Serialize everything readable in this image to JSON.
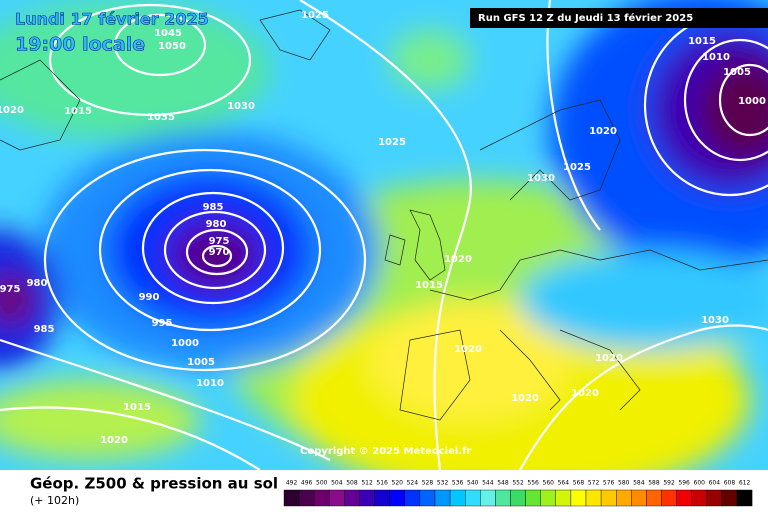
{
  "header": {
    "date": "Lundi 17 février 2025",
    "time": "19:00 locale",
    "run": "Run GFS 12 Z du Jeudi 13 février 2025"
  },
  "footer": {
    "title": "Géop. Z500 & pression au sol",
    "subtitle": "(+ 102h)",
    "copyright": "Copyright © 2025 Meteociel.fr"
  },
  "isobar_labels": [
    1025,
    1045,
    1050,
    1020,
    1015,
    1035,
    1030,
    1025,
    1015,
    1010,
    1005,
    1000,
    1020,
    1025,
    1030,
    985,
    980,
    975,
    970,
    975,
    980,
    990,
    985,
    995,
    1000,
    1005,
    1010,
    1015,
    1020,
    1020,
    1015,
    1020,
    1020,
    1020,
    1030,
    1020
  ],
  "scale": {
    "labels": [
      492,
      496,
      500,
      504,
      508,
      512,
      516,
      520,
      524,
      528,
      532,
      536,
      540,
      544,
      548,
      552,
      556,
      560,
      564,
      568,
      572,
      576,
      580,
      584,
      588,
      592,
      596,
      600,
      604,
      608,
      612
    ],
    "colors": [
      "#2d0030",
      "#4b0050",
      "#6e006e",
      "#8c0a8c",
      "#640096",
      "#3c00b4",
      "#1400d2",
      "#0000ff",
      "#0032ff",
      "#0064ff",
      "#0096ff",
      "#00c8ff",
      "#32dcff",
      "#64f0e6",
      "#50e6a0",
      "#3cdc64",
      "#64e632",
      "#a0f01e",
      "#d2f50a",
      "#ffff00",
      "#ffe600",
      "#ffc800",
      "#ffaa00",
      "#ff8c00",
      "#ff6400",
      "#ff3200",
      "#f00000",
      "#c80000",
      "#960000",
      "#640000",
      "#000000"
    ]
  }
}
